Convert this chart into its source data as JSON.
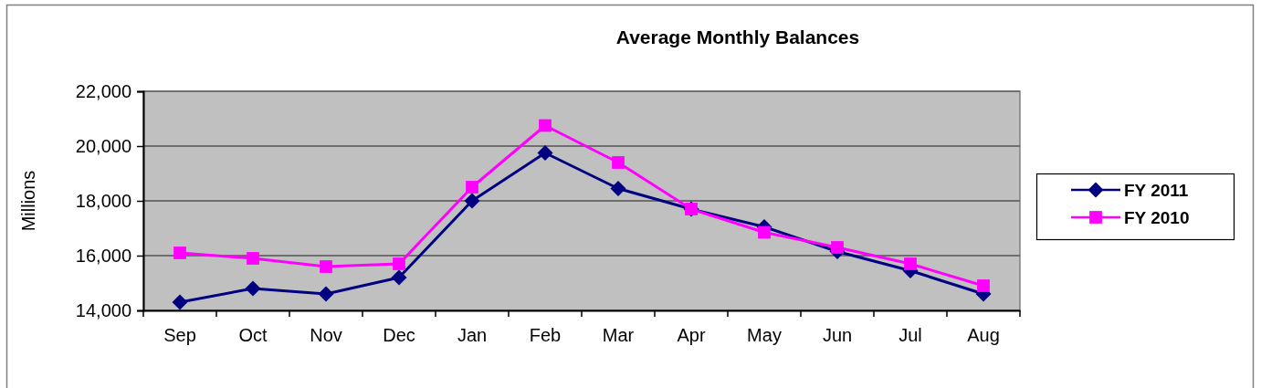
{
  "chart_data": {
    "type": "line",
    "title": "Average Monthly Balances",
    "ylabel": "Millions",
    "categories": [
      "Sep",
      "Oct",
      "Nov",
      "Dec",
      "Jan",
      "Feb",
      "Mar",
      "Apr",
      "May",
      "Jun",
      "Jul",
      "Aug"
    ],
    "series": [
      {
        "name": "FY 2011",
        "color": "#000080",
        "marker": "diamond",
        "values": [
          14300,
          14800,
          14600,
          15200,
          18000,
          19750,
          18450,
          17700,
          17050,
          16150,
          15450,
          14600
        ]
      },
      {
        "name": "FY 2010",
        "color": "#ff00ff",
        "marker": "square",
        "values": [
          16100,
          15900,
          15600,
          15700,
          18500,
          20750,
          19400,
          17700,
          16850,
          16300,
          15700,
          14900
        ]
      }
    ],
    "ylim": [
      14000,
      22000
    ],
    "yticks": [
      {
        "value": 14000,
        "label": "14,000"
      },
      {
        "value": 16000,
        "label": "16,000"
      },
      {
        "value": 18000,
        "label": "18,000"
      },
      {
        "value": 20000,
        "label": "20,000"
      },
      {
        "value": 22000,
        "label": "22,000"
      }
    ],
    "grid": "y",
    "legend": "right",
    "line_style": "solid"
  }
}
